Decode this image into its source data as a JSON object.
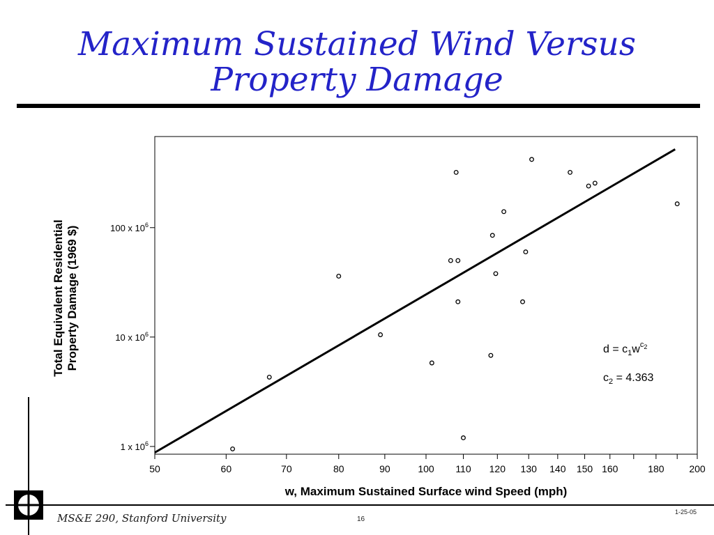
{
  "title_line1": "Maximum Sustained Wind Versus",
  "title_line2": "Property Damage",
  "footer": {
    "course": "MS&E 290, Stanford University",
    "page": "16",
    "date": "1-25-05"
  },
  "colors": {
    "title": "#2323c8",
    "marks": "#000000"
  },
  "chart_data": {
    "type": "scatter",
    "xlabel": "w, Maximum Sustained Surface wind Speed (mph)",
    "ylabel_line1": "Total Equivalent Residential",
    "ylabel_line2": "Property Damage (1969 $)",
    "x_scale": "log",
    "y_scale": "log",
    "xlim": [
      50,
      200
    ],
    "ylim": [
      0.85,
      680
    ],
    "x_ticks": [
      50,
      60,
      70,
      80,
      90,
      100,
      110,
      120,
      130,
      140,
      150,
      160,
      170,
      180,
      190,
      200
    ],
    "x_tick_labels": [
      "50",
      "60",
      "70",
      "80",
      "90",
      "100",
      "110",
      "120",
      "130",
      "140",
      "150",
      "160",
      "",
      "180",
      "",
      "200"
    ],
    "y_ticks": [
      {
        "value": 1,
        "base": "1 x 10",
        "exp": "6"
      },
      {
        "value": 10,
        "base": "10 x 10",
        "exp": "6"
      },
      {
        "value": 100,
        "base": "100 x 10",
        "exp": "6"
      }
    ],
    "y_unit": "millions of 1969 dollars",
    "points": [
      {
        "x": 61,
        "y": 0.95
      },
      {
        "x": 67,
        "y": 4.3
      },
      {
        "x": 80,
        "y": 36
      },
      {
        "x": 89,
        "y": 10.5
      },
      {
        "x": 101.5,
        "y": 5.8
      },
      {
        "x": 106.5,
        "y": 50
      },
      {
        "x": 108,
        "y": 320
      },
      {
        "x": 108.5,
        "y": 50
      },
      {
        "x": 108.5,
        "y": 21
      },
      {
        "x": 110,
        "y": 1.2
      },
      {
        "x": 118,
        "y": 6.8
      },
      {
        "x": 118.5,
        "y": 85
      },
      {
        "x": 119.5,
        "y": 38
      },
      {
        "x": 122,
        "y": 140
      },
      {
        "x": 128,
        "y": 21
      },
      {
        "x": 129,
        "y": 60
      },
      {
        "x": 131,
        "y": 420
      },
      {
        "x": 144.5,
        "y": 320
      },
      {
        "x": 151.5,
        "y": 240
      },
      {
        "x": 154,
        "y": 255
      },
      {
        "x": 190,
        "y": 165
      }
    ],
    "fit_line": {
      "x": [
        50,
        189
      ],
      "y": [
        0.88,
        520
      ]
    },
    "fit_equation": {
      "lhs": "d = c",
      "sub1": "1",
      "mid": "w",
      "sup_base": "c",
      "sup_sub": "2"
    },
    "fit_param": {
      "name": "c",
      "sub": "2",
      "value": " = 4.363"
    },
    "grid": false
  }
}
